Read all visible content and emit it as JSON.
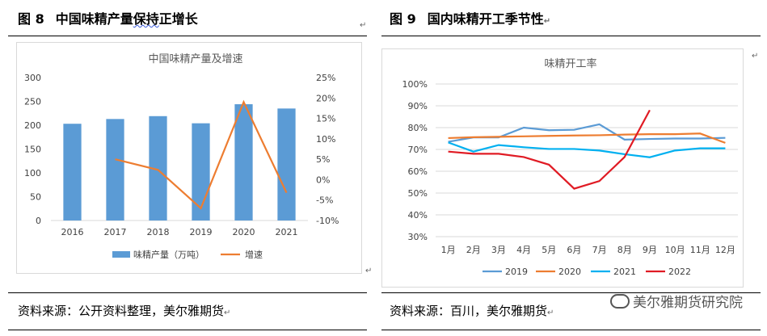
{
  "left": {
    "fig_number": "图 8",
    "fig_title_a": "中国味精产量",
    "fig_title_b": "保持",
    "fig_title_c": "正增长",
    "source": "资料来源：公开资料整理，美尔雅期货"
  },
  "right": {
    "fig_number": "图 9",
    "fig_title": "国内味精开工季节性",
    "source": "资料来源：百川，美尔雅期货",
    "watermark": "美尔雅期货研究院"
  },
  "paragraph_mark": "↵",
  "chart_data": [
    {
      "type": "bar",
      "title": "中国味精产量及增速",
      "categories": [
        "2016",
        "2017",
        "2018",
        "2019",
        "2020",
        "2021"
      ],
      "series": [
        {
          "name": "味精产量（万吨）",
          "type": "bar",
          "axis": "left",
          "color": "#5b9bd5",
          "values": [
            203,
            213,
            219,
            204,
            244,
            235
          ]
        },
        {
          "name": "增速",
          "type": "line",
          "axis": "right",
          "color": "#ed7d31",
          "values": [
            null,
            0.05,
            0.024,
            -0.07,
            0.19,
            -0.032
          ]
        }
      ],
      "ylim": [
        0,
        300
      ],
      "yticks": [
        "0",
        "50",
        "100",
        "150",
        "200",
        "250",
        "300"
      ],
      "y2lim": [
        -0.1,
        0.25
      ],
      "y2ticks": [
        "-10%",
        "-5%",
        "0%",
        "5%",
        "10%",
        "15%",
        "20%",
        "25%"
      ],
      "legend_position": "bottom",
      "grid": false
    },
    {
      "type": "line",
      "title": "味精开工率",
      "categories": [
        "1月",
        "2月",
        "3月",
        "4月",
        "5月",
        "6月",
        "7月",
        "8月",
        "9月",
        "10月",
        "11月",
        "12月"
      ],
      "series": [
        {
          "name": "2019",
          "color": "#5b9bd5",
          "values": [
            73.5,
            75.5,
            75.5,
            80,
            78.8,
            79,
            81.5,
            74.5,
            74.8,
            75,
            75,
            75.3
          ]
        },
        {
          "name": "2020",
          "color": "#ed7d31",
          "values": [
            75.2,
            75.6,
            75.8,
            76,
            76.2,
            76.4,
            76.5,
            76.8,
            77,
            77,
            77.3,
            73
          ]
        },
        {
          "name": "2021",
          "color": "#00b0f0",
          "values": [
            73.2,
            69,
            72,
            71,
            70.2,
            70.2,
            69.5,
            67.8,
            66.4,
            69.5,
            70.5,
            70.5
          ]
        },
        {
          "name": "2022",
          "color": "#e01b24",
          "values": [
            69,
            68,
            68,
            66.5,
            63,
            52,
            55.5,
            66.5,
            88,
            null,
            null,
            null
          ]
        }
      ],
      "ylim": [
        30,
        100
      ],
      "yticks": [
        "30%",
        "40%",
        "50%",
        "60%",
        "70%",
        "80%",
        "90%",
        "100%"
      ],
      "legend_position": "bottom",
      "grid": true
    }
  ]
}
